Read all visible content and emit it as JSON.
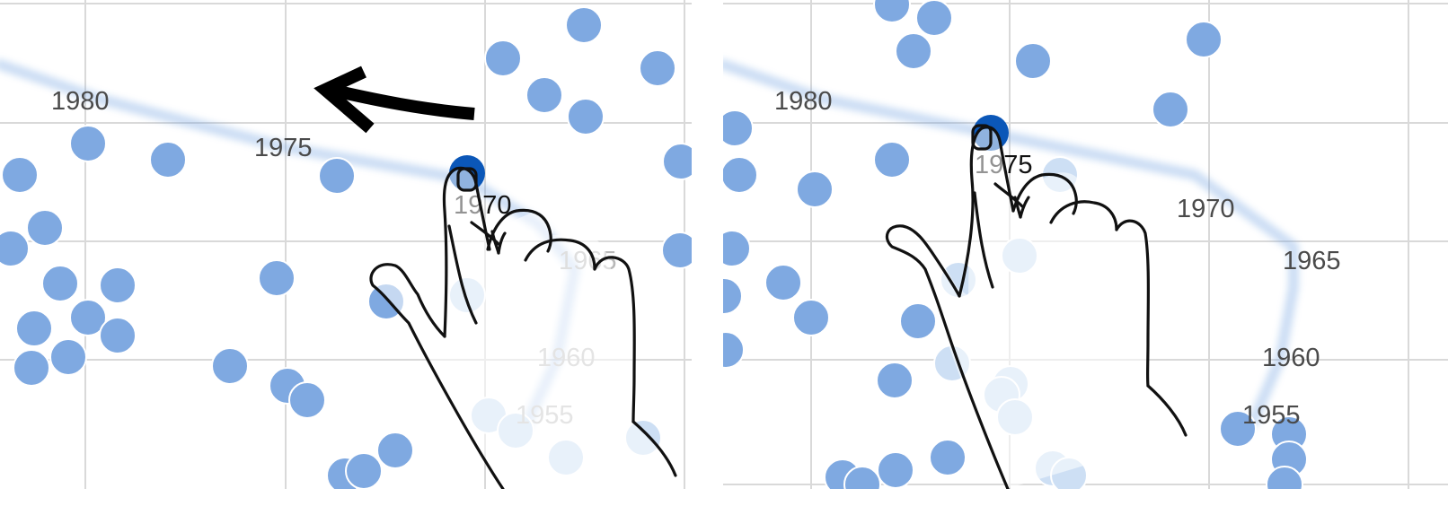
{
  "chart_data": [
    {
      "type": "scatter",
      "panel": "left",
      "trail_years": [
        {
          "year": "1980",
          "label_color": "#4a4a4a"
        },
        {
          "year": "1975",
          "label_color": "#4a4a4a"
        },
        {
          "year": "1970",
          "label_color": "#111111"
        },
        {
          "year": "1965",
          "label_color": "#b8b8b8"
        },
        {
          "year": "1960",
          "label_color": "#c4c4c4"
        },
        {
          "year": "1955",
          "label_color": "#c4c4c4"
        }
      ],
      "selected_year": "1970",
      "gesture": "drag-left"
    },
    {
      "type": "scatter",
      "panel": "right",
      "trail_years": [
        {
          "year": "1980",
          "label_color": "#4a4a4a"
        },
        {
          "year": "1975",
          "label_color": "#111111"
        },
        {
          "year": "1970",
          "label_color": "#4a4a4a"
        },
        {
          "year": "1965",
          "label_color": "#4a4a4a"
        },
        {
          "year": "1960",
          "label_color": "#4a4a4a"
        },
        {
          "year": "1955",
          "label_color": "#4a4a4a"
        }
      ],
      "selected_year": "1975"
    }
  ],
  "colors": {
    "point": "#7fa9e1",
    "point_faded": "#cddff4",
    "point_selected": "#0b57b8",
    "grid": "#d9d9d9",
    "trail": "#6d9fe0"
  },
  "icons": [
    "hand-pointer-icon",
    "arrow-left-icon"
  ]
}
